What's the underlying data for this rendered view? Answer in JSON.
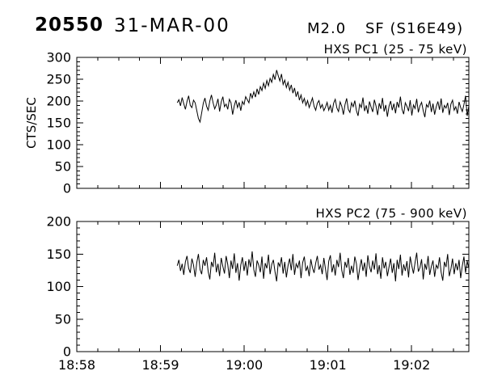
{
  "header": {
    "event_id": "20550",
    "date": "31-MAR-00",
    "goes_class": "M2.0",
    "flare_type": "SF (S16E49)"
  },
  "chart_data": [
    {
      "type": "line",
      "title": "HXS PC1 (25 - 75 keV)",
      "ylabel": "CTS/SEC",
      "ylim": [
        0,
        300
      ],
      "yticks": [
        0,
        50,
        100,
        150,
        200,
        250,
        300
      ],
      "y_minor_step": 10,
      "xlim_seconds_after_1858": [
        0,
        281
      ],
      "x_major_ticks_seconds": [
        0,
        60,
        120,
        180,
        240
      ],
      "x_minor_step_seconds": 15,
      "x_tick_labels": [
        "18:58",
        "18:59",
        "19:00",
        "19:01",
        "19:02"
      ],
      "show_x_tick_labels": false,
      "grid": false,
      "line_color": "#000000",
      "series": [
        {
          "name": "HXS PC1",
          "t_start_seconds": 72,
          "t_end_seconds": 281,
          "values": [
            196,
            203,
            189,
            208,
            194,
            181,
            199,
            212,
            190,
            185,
            202,
            196,
            178,
            160,
            152,
            173,
            195,
            207,
            188,
            179,
            200,
            214,
            196,
            182,
            191,
            205,
            176,
            198,
            210,
            187,
            193,
            181,
            204,
            196,
            169,
            189,
            202,
            185,
            197,
            178,
            199,
            192,
            210,
            203,
            196,
            218,
            207,
            221,
            209,
            228,
            215,
            233,
            224,
            241,
            229,
            247,
            235,
            252,
            243,
            261,
            249,
            271,
            258,
            246,
            262,
            238,
            248,
            231,
            243,
            225,
            237,
            218,
            230,
            210,
            222,
            202,
            214,
            196,
            206,
            190,
            201,
            185,
            196,
            207,
            188,
            179,
            195,
            201,
            184,
            192,
            178,
            186,
            197,
            179,
            190,
            173,
            195,
            204,
            184,
            176,
            198,
            188,
            169,
            192,
            206,
            181,
            174,
            196,
            187,
            201,
            178,
            166,
            193,
            185,
            208,
            177,
            190,
            171,
            199,
            186,
            175,
            203,
            189,
            168,
            195,
            182,
            207,
            176,
            191,
            164,
            188,
            200,
            179,
            194,
            172,
            198,
            185,
            210,
            181,
            170,
            196,
            188,
            177,
            202,
            167,
            191,
            183,
            205,
            174,
            189,
            197,
            178,
            163,
            192,
            186,
            201,
            175,
            194,
            169,
            187,
            199,
            180,
            206,
            173,
            190,
            184,
            196,
            168,
            193,
            202,
            179,
            187,
            171,
            198,
            185,
            176,
            192,
            212,
            166,
            189
          ]
        }
      ]
    },
    {
      "type": "line",
      "title": "HXS PC2 (75 - 900 keV)",
      "ylabel": "",
      "ylim": [
        0,
        200
      ],
      "yticks": [
        0,
        50,
        100,
        150,
        200
      ],
      "y_minor_step": 10,
      "xlim_seconds_after_1858": [
        0,
        281
      ],
      "x_major_ticks_seconds": [
        0,
        60,
        120,
        180,
        240
      ],
      "x_minor_step_seconds": 15,
      "x_tick_labels": [
        "18:58",
        "18:59",
        "19:00",
        "19:01",
        "19:02"
      ],
      "show_x_tick_labels": true,
      "grid": false,
      "line_color": "#000000",
      "series": [
        {
          "name": "HXS PC2",
          "t_start_seconds": 72,
          "t_end_seconds": 281,
          "values": [
            132,
            141,
            124,
            135,
            118,
            138,
            147,
            128,
            121,
            143,
            133,
            115,
            137,
            150,
            126,
            119,
            141,
            132,
            145,
            123,
            111,
            138,
            130,
            152,
            122,
            135,
            116,
            144,
            131,
            120,
            147,
            134,
            113,
            140,
            127,
            151,
            121,
            136,
            109,
            133,
            145,
            124,
            139,
            117,
            142,
            130,
            154,
            126,
            115,
            140,
            133,
            122,
            146,
            112,
            136,
            128,
            149,
            119,
            134,
            141,
            123,
            108,
            137,
            131,
            145,
            120,
            138,
            114,
            132,
            143,
            125,
            150,
            118,
            135,
            129,
            140,
            113,
            137,
            146,
            124,
            131,
            116,
            142,
            129,
            121,
            136,
            147,
            126,
            133,
            119,
            144,
            127,
            110,
            139,
            148,
            122,
            134,
            117,
            141,
            130,
            152,
            125,
            113,
            138,
            129,
            144,
            118,
            132,
            121,
            146,
            135,
            110,
            128,
            142,
            124,
            137,
            115,
            148,
            131,
            122,
            140,
            126,
            151,
            119,
            133,
            112,
            145,
            128,
            138,
            116,
            130,
            143,
            121,
            136,
            108,
            141,
            127,
            149,
            117,
            134,
            124,
            139,
            114,
            146,
            132,
            120,
            137,
            152,
            123,
            129,
            142,
            111,
            135,
            126,
            147,
            118,
            131,
            140,
            115,
            133,
            128,
            145,
            122,
            109,
            138,
            130,
            150,
            116,
            127,
            143,
            119,
            136,
            125,
            141,
            113,
            132,
            146,
            121,
            139,
            128
          ]
        }
      ]
    }
  ]
}
